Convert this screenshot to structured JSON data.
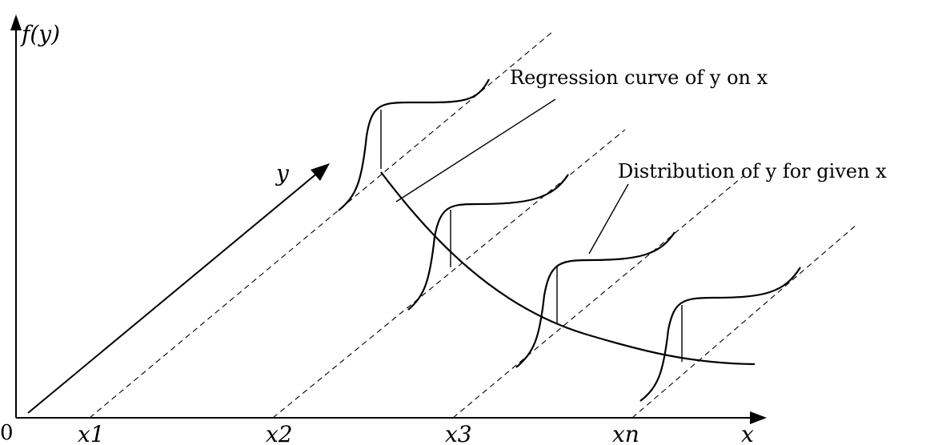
{
  "labels": {
    "origin": "0",
    "y_axis": "f(y)",
    "x_axis": "x",
    "y_direction": "y",
    "x1": "x1",
    "x2": "x2",
    "x3": "x3",
    "xn": "xn",
    "regression": "Regression curve of y on x",
    "distribution": "Distribution of y for given x"
  }
}
